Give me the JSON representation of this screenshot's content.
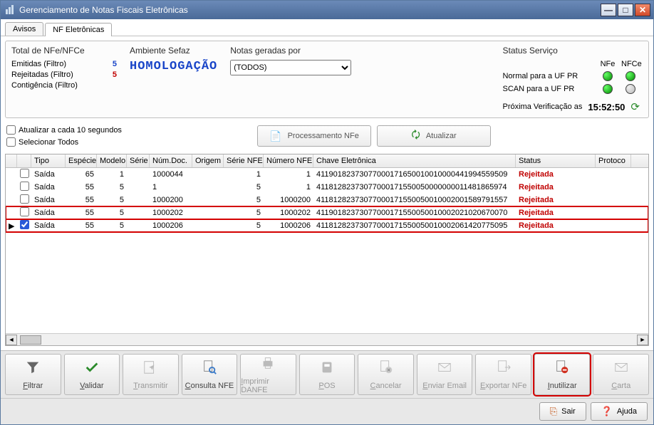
{
  "window": {
    "title": "Gerenciamento de Notas Fiscais Eletrônicas"
  },
  "tabs": {
    "avisos": "Avisos",
    "nf": "NF Eletrônicas"
  },
  "totals": {
    "title": "Total de NFe/NFCe",
    "emitidas_label": "Emitidas (Filtro)",
    "emitidas": "5",
    "rejeitadas_label": "Rejeitadas (Filtro)",
    "rejeitadas": "5",
    "contingencia_label": "Contigência (Filtro)",
    "contingencia": ""
  },
  "ambiente": {
    "title": "Ambiente Sefaz",
    "value": "HOMOLOGAÇÃO"
  },
  "notas": {
    "title": "Notas geradas por",
    "selected": "(TODOS)"
  },
  "status": {
    "title": "Status Serviço",
    "col_nfe": "NFe",
    "col_nfce": "NFCe",
    "row1": "Normal para a UF PR",
    "row2": "SCAN para a UF PR",
    "verif_label": "Próxima Verificação as",
    "verif_time": "15:52:50",
    "leds": {
      "r1c1": "green",
      "r1c2": "green",
      "r2c1": "green",
      "r2c2": "off"
    }
  },
  "options": {
    "atualizar_cada": "Atualizar a cada 10 segundos",
    "selecionar_todos": "Selecionar Todos"
  },
  "midButtons": {
    "proc": "Processamento NFe",
    "atualizar": "Atualizar"
  },
  "gridHeaders": {
    "tipo": "Tipo",
    "especie": "Espécie",
    "modelo": "Modelo",
    "serie": "Série",
    "numdoc": "Núm.Doc.",
    "origem": "Origem",
    "serienfe": "Série NFE",
    "numnfe": "Número NFE",
    "chave": "Chave Eletrônica",
    "status": "Status",
    "protocolo": "Protoco"
  },
  "rows": [
    {
      "chk": false,
      "tipo": "Saída",
      "esp": "65",
      "mod": "1",
      "ser": "",
      "num": "1000044",
      "ori": "",
      "snf": "1",
      "nnf": "1",
      "chv": "41190182373077000171650010010000441994559509",
      "stat": "Rejeitada"
    },
    {
      "chk": false,
      "tipo": "Saída",
      "esp": "55",
      "mod": "5",
      "ser": "",
      "num": "1",
      "ori": "",
      "snf": "5",
      "nnf": "1",
      "chv": "41181282373077000171550050000000011481865974",
      "stat": "Rejeitada"
    },
    {
      "chk": false,
      "tipo": "Saída",
      "esp": "55",
      "mod": "5",
      "ser": "",
      "num": "1000200",
      "ori": "",
      "snf": "5",
      "nnf": "1000200",
      "chv": "41181282373077000171550050010002001589791557",
      "stat": "Rejeitada"
    },
    {
      "chk": false,
      "tipo": "Saída",
      "esp": "55",
      "mod": "5",
      "ser": "",
      "num": "1000202",
      "ori": "",
      "snf": "5",
      "nnf": "1000202",
      "chv": "41190182373077000171550050010002021020670070",
      "stat": "Rejeitada",
      "boxed": true
    },
    {
      "chk": true,
      "sel": true,
      "tipo": "Saída",
      "esp": "55",
      "mod": "5",
      "ser": "",
      "num": "1000206",
      "ori": "",
      "snf": "5",
      "nnf": "1000206",
      "chv": "41181282373077000171550050010002061420775095",
      "stat": "Rejeitada",
      "boxed": true
    }
  ],
  "toolbar": [
    {
      "key": "filtrar",
      "label": "Filtrar",
      "icon": "funnel",
      "enabled": true,
      "color": "#555"
    },
    {
      "key": "validar",
      "label": "Validar",
      "icon": "check",
      "enabled": true,
      "color": "#2a8a2a"
    },
    {
      "key": "transmitir",
      "label": "Transmitir",
      "icon": "send",
      "enabled": false
    },
    {
      "key": "consulta",
      "label": "Consulta NFE",
      "icon": "doc-search",
      "enabled": true
    },
    {
      "key": "imprimir",
      "label": "Imprimir DANFE",
      "icon": "printer",
      "enabled": false
    },
    {
      "key": "pos",
      "label": "POS",
      "icon": "pos",
      "enabled": false
    },
    {
      "key": "cancelar",
      "label": "Cancelar",
      "icon": "doc-x",
      "enabled": false
    },
    {
      "key": "email",
      "label": "Enviar Email",
      "icon": "mail",
      "enabled": false
    },
    {
      "key": "exportar",
      "label": "Exportar NFe",
      "icon": "export",
      "enabled": false
    },
    {
      "key": "inutilizar",
      "label": "Inutilizar",
      "icon": "doc-stop",
      "enabled": true,
      "highlighted": true
    },
    {
      "key": "carta",
      "label": "Carta",
      "icon": "envelope",
      "enabled": false
    }
  ],
  "bottom": {
    "sair": "Sair",
    "ajuda": "Ajuda"
  },
  "colors": {
    "accent_blue": "#1844c8",
    "status_red": "#c00000",
    "highlight_red": "#d40000",
    "led_green": "#0a0"
  }
}
